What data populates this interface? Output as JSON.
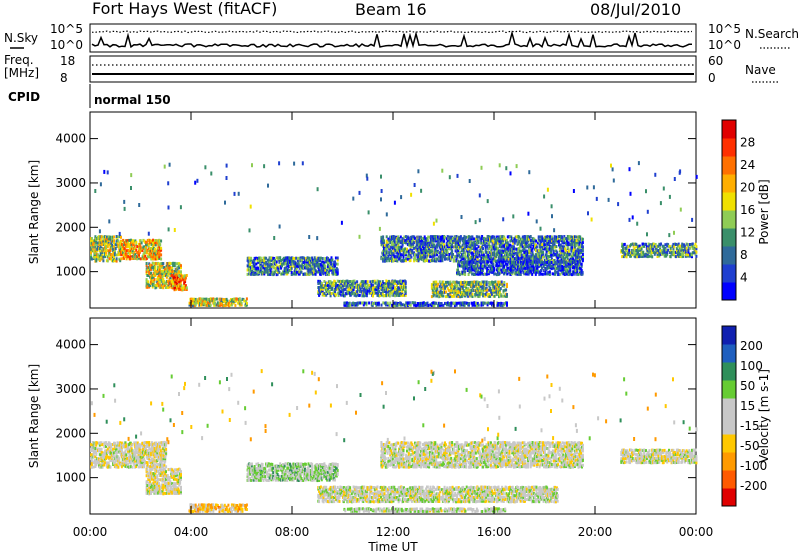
{
  "header": {
    "station": "Fort Hays West (fitACF)",
    "beam": "Beam 16",
    "date": "08/Jul/2010"
  },
  "noise_panel": {
    "left_label": "N.Sky",
    "left_ticks": [
      "10^5",
      "10^0"
    ],
    "right_label": "N.Search",
    "right_ticks": [
      "10^5",
      "10^0"
    ]
  },
  "freq_panel": {
    "left_label_line1": "Freq.",
    "left_label_line2": "[MHz]",
    "left_ticks": [
      "18",
      "8"
    ],
    "right_label": "Nave",
    "right_ticks": [
      "60",
      "0"
    ]
  },
  "cpid": {
    "label": "CPID",
    "mode": "normal 150"
  },
  "x_axis": {
    "label": "Time UT",
    "ticks": [
      "00:00",
      "04:00",
      "08:00",
      "12:00",
      "16:00",
      "20:00",
      "00:00"
    ]
  },
  "y_axis": {
    "label": "Slant Range [km]",
    "ticks": [
      "1000",
      "2000",
      "3000",
      "4000"
    ]
  },
  "colors": {
    "power_scale": [
      "#0000ff",
      "#1f3fcf",
      "#2f6a9a",
      "#3a8f6a",
      "#8fcc55",
      "#f0e000",
      "#ffae00",
      "#ff7000",
      "#ff3000",
      "#e00000"
    ],
    "velocity_scale": [
      "#e00000",
      "#ff5a00",
      "#ff9a00",
      "#ffc800",
      "#c8c8c8",
      "#c8c8c8",
      "#66cc33",
      "#2f8f5a",
      "#1f5fbf",
      "#1020b0"
    ]
  },
  "chart_data": [
    {
      "type": "heatmap",
      "title": "Power",
      "xlabel": "Time UT",
      "ylabel": "Slant Range [km]",
      "xlim": [
        0,
        24
      ],
      "ylim": [
        180,
        4600
      ],
      "colorbar": {
        "label": "Power [dB]",
        "ticks": [
          "4",
          "8",
          "12",
          "16",
          "20",
          "24",
          "28"
        ],
        "range": [
          0,
          30
        ]
      },
      "echo_bands": [
        {
          "t_start": 0.0,
          "t_end": 1.2,
          "range_low": 1200,
          "range_high": 1800,
          "mean_power": 14
        },
        {
          "t_start": 1.2,
          "t_end": 2.8,
          "range_low": 1250,
          "range_high": 1700,
          "mean_power": 18
        },
        {
          "t_start": 2.2,
          "t_end": 3.6,
          "range_low": 600,
          "range_high": 1200,
          "mean_power": 16
        },
        {
          "t_start": 3.2,
          "t_end": 3.8,
          "range_low": 550,
          "range_high": 900,
          "mean_power": 22
        },
        {
          "t_start": 3.9,
          "t_end": 6.2,
          "range_low": 200,
          "range_high": 380,
          "mean_power": 16
        },
        {
          "t_start": 6.2,
          "t_end": 9.8,
          "range_low": 900,
          "range_high": 1300,
          "mean_power": 8
        },
        {
          "t_start": 9.0,
          "t_end": 12.5,
          "range_low": 420,
          "range_high": 800,
          "mean_power": 10
        },
        {
          "t_start": 10.0,
          "t_end": 16.5,
          "range_low": 200,
          "range_high": 300,
          "mean_power": 6
        },
        {
          "t_start": 11.5,
          "t_end": 19.5,
          "range_low": 1200,
          "range_high": 1800,
          "mean_power": 8
        },
        {
          "t_start": 13.5,
          "t_end": 16.5,
          "range_low": 400,
          "range_high": 750,
          "mean_power": 12
        },
        {
          "t_start": 14.5,
          "t_end": 19.5,
          "range_low": 900,
          "range_high": 1200,
          "mean_power": 6
        },
        {
          "t_start": 21.0,
          "t_end": 24.0,
          "range_low": 1300,
          "range_high": 1600,
          "mean_power": 10
        }
      ]
    },
    {
      "type": "heatmap",
      "title": "Velocity",
      "xlabel": "Time UT",
      "ylabel": "Slant Range [km]",
      "xlim": [
        0,
        24
      ],
      "ylim": [
        180,
        4600
      ],
      "colorbar": {
        "label": "Velocity [m s-1]",
        "ticks": [
          "-200",
          "-100",
          "-50",
          "-15",
          "15",
          "50",
          "100",
          "200"
        ],
        "range": [
          -250,
          250
        ]
      },
      "echo_bands": [
        {
          "t_start": 0.0,
          "t_end": 3.0,
          "range_low": 1200,
          "range_high": 1800,
          "mean_velocity": -10
        },
        {
          "t_start": 2.2,
          "t_end": 3.6,
          "range_low": 600,
          "range_high": 1200,
          "mean_velocity": -15
        },
        {
          "t_start": 3.9,
          "t_end": 6.2,
          "range_low": 200,
          "range_high": 380,
          "mean_velocity": -80
        },
        {
          "t_start": 6.2,
          "t_end": 9.8,
          "range_low": 900,
          "range_high": 1300,
          "mean_velocity": 40
        },
        {
          "t_start": 9.0,
          "t_end": 18.5,
          "range_low": 420,
          "range_high": 800,
          "mean_velocity": 5
        },
        {
          "t_start": 10.0,
          "t_end": 16.5,
          "range_low": 200,
          "range_high": 300,
          "mean_velocity": 20
        },
        {
          "t_start": 11.5,
          "t_end": 19.5,
          "range_low": 1200,
          "range_high": 1800,
          "mean_velocity": 0
        },
        {
          "t_start": 21.0,
          "t_end": 24.0,
          "range_low": 1300,
          "range_high": 1600,
          "mean_velocity": -5
        }
      ]
    }
  ]
}
